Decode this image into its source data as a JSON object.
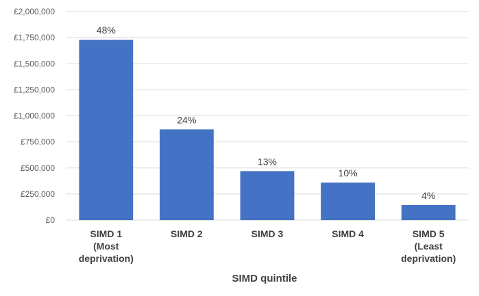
{
  "chart_data": {
    "type": "bar",
    "categories": [
      [
        "SIMD 1",
        "(Most",
        "deprivation)"
      ],
      [
        "SIMD 2"
      ],
      [
        "SIMD 3"
      ],
      [
        "SIMD 4"
      ],
      [
        "SIMD 5",
        "(Least",
        "deprivation)"
      ]
    ],
    "values": [
      1730000,
      870000,
      470000,
      360000,
      145000
    ],
    "data_labels": [
      "48%",
      "24%",
      "13%",
      "10%",
      "4%"
    ],
    "y_ticks": [
      0,
      250000,
      500000,
      750000,
      1000000,
      1250000,
      1500000,
      1750000,
      2000000
    ],
    "y_tick_labels": [
      "£0",
      "£250,000",
      "£500,000",
      "£750,000",
      "£1,000,000",
      "£1,250,000",
      "£1,500,000",
      "£1,750,000",
      "£2,000,000"
    ],
    "ylim": [
      0,
      2000000
    ],
    "xlabel": "SIMD quintile",
    "ylabel": "",
    "title": "",
    "grid": true,
    "bar_color": "#4472C4"
  }
}
